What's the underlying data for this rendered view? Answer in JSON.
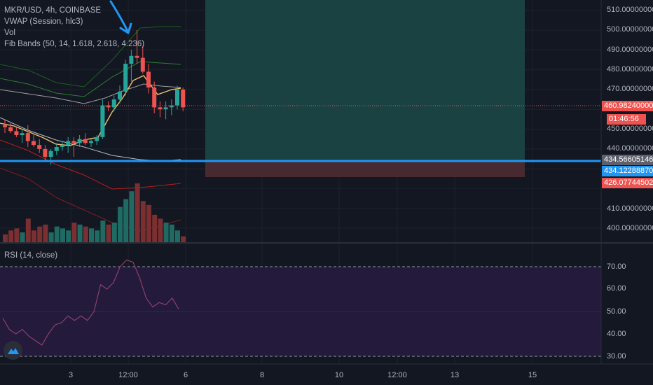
{
  "legend": {
    "symbol": "MKR/USD, 4h, COINBASE",
    "vwap": "VWAP (Session, hlc3)",
    "vol": "Vol",
    "fib": "Fib Bands (50, 14, 1.618, 2.618, 4.236)"
  },
  "rsi_label": "RSI (14, close)",
  "price_axis": [
    "510.00000000",
    "500.00000000",
    "490.00000000",
    "480.00000000",
    "470.00000000",
    "450.00000000",
    "440.00000000",
    "410.00000000",
    "400.00000000"
  ],
  "price_tags": {
    "last": "460.98240000",
    "countdown": "01:46:56",
    "level_line": "434.56605146",
    "entry": "434.12288870",
    "stop": "426.07744502"
  },
  "rsi_axis": [
    "70.00",
    "60.00",
    "50.00",
    "40.00",
    "30.00"
  ],
  "time_axis": [
    "3",
    "12:00",
    "6",
    "8",
    "10",
    "12:00",
    "13",
    "15"
  ],
  "colors": {
    "background": "#131722",
    "up": "#26a69a",
    "down": "#ef5350",
    "level_line": "#2196f3",
    "target_zone": "#1a4544",
    "stop_zone": "#4a2a30",
    "rsi_band": "#231a3c"
  },
  "icons": [
    "arrow-annotation-icon",
    "tradingview-logo-icon"
  ],
  "chart_data": {
    "type": "candlestick",
    "title": "MKR/USD, 4h, COINBASE",
    "ylim": [
      390,
      515
    ],
    "candles": [
      {
        "o": 452,
        "h": 455,
        "l": 448,
        "c": 451
      },
      {
        "o": 451,
        "h": 453,
        "l": 448,
        "c": 449
      },
      {
        "o": 449,
        "h": 451,
        "l": 446,
        "c": 447
      },
      {
        "o": 447,
        "h": 450,
        "l": 443,
        "c": 448
      },
      {
        "o": 448,
        "h": 452,
        "l": 441,
        "c": 444
      },
      {
        "o": 444,
        "h": 447,
        "l": 441,
        "c": 442
      },
      {
        "o": 442,
        "h": 445,
        "l": 438,
        "c": 440
      },
      {
        "o": 440,
        "h": 442,
        "l": 434,
        "c": 436
      },
      {
        "o": 436,
        "h": 440,
        "l": 432,
        "c": 439
      },
      {
        "o": 439,
        "h": 443,
        "l": 437,
        "c": 441
      },
      {
        "o": 441,
        "h": 444,
        "l": 439,
        "c": 442
      },
      {
        "o": 442,
        "h": 446,
        "l": 438,
        "c": 444
      },
      {
        "o": 444,
        "h": 446,
        "l": 436,
        "c": 443
      },
      {
        "o": 443,
        "h": 447,
        "l": 441,
        "c": 445
      },
      {
        "o": 445,
        "h": 448,
        "l": 442,
        "c": 443
      },
      {
        "o": 443,
        "h": 445,
        "l": 441,
        "c": 444
      },
      {
        "o": 444,
        "h": 447,
        "l": 442,
        "c": 446
      },
      {
        "o": 446,
        "h": 465,
        "l": 445,
        "c": 462
      },
      {
        "o": 462,
        "h": 464,
        "l": 459,
        "c": 461
      },
      {
        "o": 461,
        "h": 467,
        "l": 459,
        "c": 465
      },
      {
        "o": 465,
        "h": 472,
        "l": 463,
        "c": 469
      },
      {
        "o": 469,
        "h": 485,
        "l": 467,
        "c": 483
      },
      {
        "o": 483,
        "h": 490,
        "l": 474,
        "c": 487
      },
      {
        "o": 487,
        "h": 500,
        "l": 483,
        "c": 486
      },
      {
        "o": 486,
        "h": 492,
        "l": 478,
        "c": 479
      },
      {
        "o": 479,
        "h": 483,
        "l": 468,
        "c": 471
      },
      {
        "o": 471,
        "h": 474,
        "l": 458,
        "c": 461
      },
      {
        "o": 461,
        "h": 464,
        "l": 456,
        "c": 460
      },
      {
        "o": 460,
        "h": 464,
        "l": 455,
        "c": 461
      },
      {
        "o": 461,
        "h": 465,
        "l": 457,
        "c": 462
      },
      {
        "o": 462,
        "h": 472,
        "l": 460,
        "c": 470
      },
      {
        "o": 470,
        "h": 471,
        "l": 459,
        "c": 461
      }
    ],
    "volume": [
      4,
      6,
      7,
      5,
      12,
      6,
      8,
      9,
      5,
      8,
      7,
      6,
      10,
      9,
      8,
      7,
      6,
      11,
      9,
      10,
      18,
      22,
      26,
      30,
      21,
      19,
      14,
      12,
      10,
      9,
      6,
      3
    ],
    "levels": {
      "line": 434.56605146,
      "entry": 434.1228887,
      "stop": 426.07744502
    },
    "rsi": [
      47,
      42,
      40,
      42,
      39,
      37,
      35,
      40,
      44,
      45,
      48,
      46,
      48,
      46,
      50,
      62,
      60,
      63,
      70,
      73,
      72,
      65,
      56,
      52,
      54,
      53,
      56,
      51
    ]
  }
}
